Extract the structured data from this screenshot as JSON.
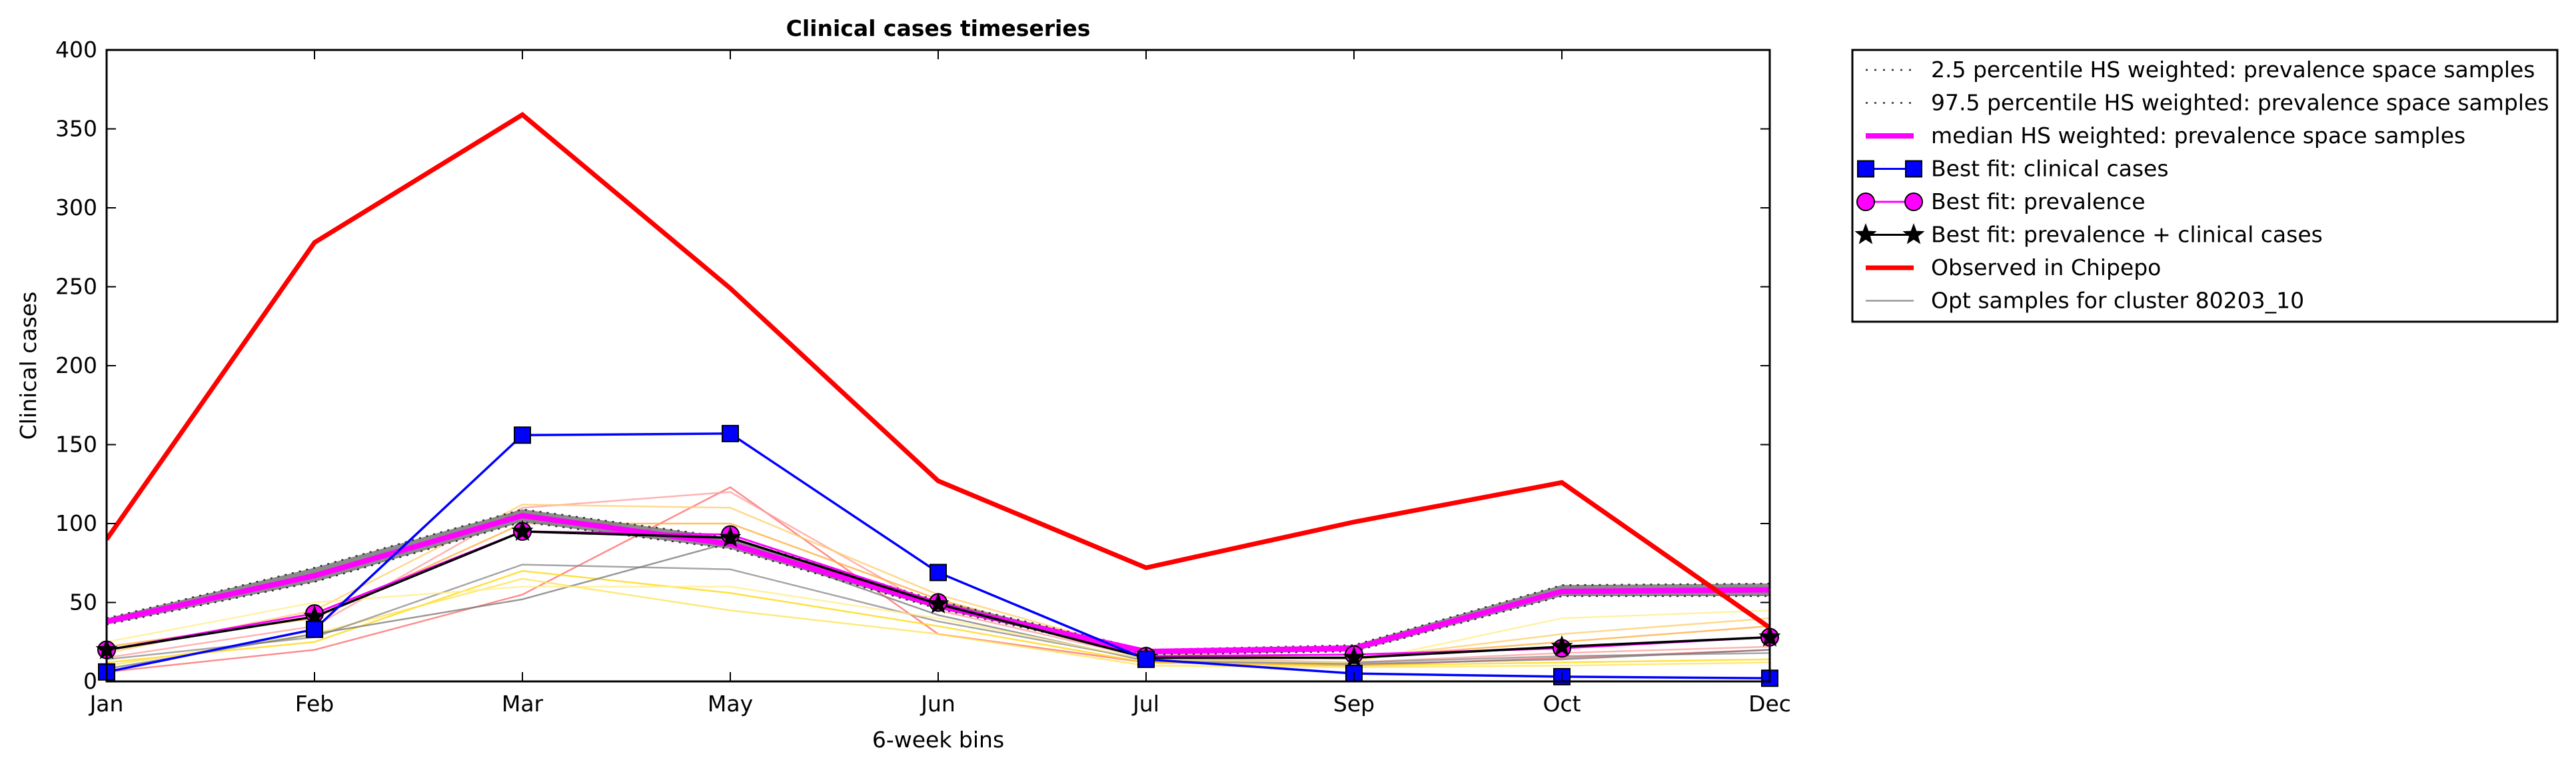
{
  "chart_data": {
    "type": "line",
    "title": "Clinical cases timeseries",
    "xlabel": "6-week bins",
    "ylabel": "Clinical cases",
    "categories": [
      "Jan",
      "Feb",
      "Mar",
      "May",
      "Jun",
      "Jul",
      "Sep",
      "Oct",
      "Dec"
    ],
    "ylim": [
      0,
      400
    ],
    "yticks": [
      0,
      50,
      100,
      150,
      200,
      250,
      300,
      350,
      400
    ],
    "grid": false,
    "legend_position": "outside-top-right",
    "series": [
      {
        "name": "2.5 percentile HS weighted: prevalence space samples",
        "style": "dotted",
        "color": "#555555",
        "values": [
          36,
          63,
          101,
          84,
          46,
          17,
          19,
          54,
          54
        ]
      },
      {
        "name": "97.5 percentile HS weighted: prevalence space samples",
        "style": "dotted",
        "color": "#555555",
        "values": [
          40,
          72,
          109,
          91,
          51,
          20,
          23,
          61,
          62
        ]
      },
      {
        "name": "median HS weighted: prevalence space samples",
        "style": "solid",
        "color": "#ff00ff",
        "values": [
          38,
          67,
          105,
          87,
          48,
          19,
          21,
          57,
          58
        ]
      },
      {
        "name": "Best fit: clinical cases",
        "style": "solid",
        "marker": "square",
        "color": "#0000ff",
        "values": [
          6,
          33,
          156,
          157,
          69,
          14,
          5,
          3,
          2
        ]
      },
      {
        "name": "Best fit: prevalence",
        "style": "solid",
        "marker": "circle",
        "color": "#ff00ff",
        "values": [
          20,
          43,
          95,
          93,
          50,
          16,
          17,
          21,
          28
        ]
      },
      {
        "name": "Best fit: prevalence + clinical cases",
        "style": "solid",
        "marker": "star",
        "color": "#000000",
        "values": [
          20,
          41,
          95,
          91,
          49,
          15,
          15,
          22,
          28
        ]
      },
      {
        "name": "Observed in Chipepo",
        "style": "solid",
        "color": "#ff0000",
        "values": [
          90,
          278,
          359,
          249,
          127,
          72,
          101,
          126,
          34
        ]
      },
      {
        "name": "Opt samples for cluster 80203_10",
        "style": "solid",
        "color": "#999999",
        "samples": [
          {
            "color": "#ff6666",
            "values": [
              6,
              20,
              55,
              123,
              30,
              12,
              10,
              15,
              20
            ]
          },
          {
            "color": "#ff9999",
            "values": [
              15,
              35,
              110,
              120,
              45,
              15,
              12,
              18,
              22
            ]
          },
          {
            "color": "#ffd700",
            "values": [
              12,
              25,
              70,
              56,
              35,
              12,
              10,
              12,
              14
            ]
          },
          {
            "color": "#ffe14d",
            "values": [
              10,
              30,
              65,
              45,
              30,
              10,
              9,
              10,
              12
            ]
          },
          {
            "color": "#ffcc66",
            "values": [
              18,
              45,
              112,
              110,
              55,
              18,
              14,
              30,
              40
            ]
          },
          {
            "color": "#ffaa33",
            "values": [
              22,
              40,
              100,
              100,
              52,
              16,
              15,
              25,
              35
            ]
          },
          {
            "color": "#888888",
            "values": [
              14,
              28,
              74,
              71,
              38,
              14,
              12,
              16,
              18
            ]
          },
          {
            "color": "#777777",
            "values": [
              8,
              30,
              52,
              88,
              42,
              13,
              11,
              14,
              20
            ]
          },
          {
            "color": "#ffee88",
            "values": [
              25,
              50,
              60,
              60,
              40,
              14,
              12,
              40,
              45
            ]
          }
        ]
      }
    ]
  }
}
